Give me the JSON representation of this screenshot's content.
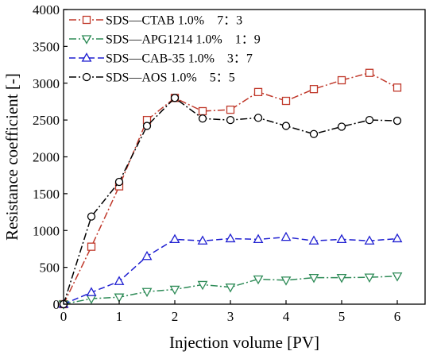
{
  "chart_data": {
    "type": "line",
    "xlabel": "Injection volume [PV]",
    "ylabel": "Resistance coefficient [-]",
    "xlim": [
      0,
      6.5
    ],
    "ylim": [
      0,
      4000
    ],
    "xticks": [
      0,
      1,
      2,
      3,
      4,
      5,
      6
    ],
    "yticks": [
      0,
      500,
      1000,
      1500,
      2000,
      2500,
      3000,
      3500,
      4000
    ],
    "legend_position": "top-left",
    "series": [
      {
        "name": "SDS—CTAB 1.0% 7：3",
        "color": "#c0392b",
        "marker": "square",
        "dash": "dash-dot",
        "x": [
          0,
          0.5,
          1,
          1.5,
          2,
          2.5,
          3,
          3.5,
          4,
          4.5,
          5,
          5.5,
          6
        ],
        "y": [
          0,
          780,
          1600,
          2500,
          2800,
          2620,
          2640,
          2880,
          2760,
          2920,
          3040,
          3140,
          2940
        ]
      },
      {
        "name": "SDS—APG1214 1.0% 1：9",
        "color": "#2e8b57",
        "marker": "triangle-down",
        "dash": "dash-dot",
        "x": [
          0,
          0.5,
          1,
          1.5,
          2,
          2.5,
          3,
          3.5,
          4,
          4.5,
          5,
          5.5,
          6
        ],
        "y": [
          0,
          75,
          95,
          170,
          200,
          265,
          230,
          340,
          325,
          360,
          360,
          365,
          380
        ]
      },
      {
        "name": "SDS—CAB-35 1.0% 3：7",
        "color": "#1f1fd1",
        "marker": "triangle-up",
        "dash": "dash",
        "x": [
          0,
          0.5,
          1,
          1.5,
          2,
          2.5,
          3,
          3.5,
          4,
          4.5,
          5,
          5.5,
          6
        ],
        "y": [
          0,
          160,
          310,
          650,
          880,
          860,
          890,
          880,
          910,
          860,
          880,
          860,
          890
        ]
      },
      {
        "name": "SDS—AOS 1.0% 5：5",
        "color": "#000000",
        "marker": "circle",
        "dash": "dash-dot",
        "x": [
          0,
          0.5,
          1,
          1.5,
          2,
          2.5,
          3,
          3.5,
          4,
          4.5,
          5,
          5.5,
          6
        ],
        "y": [
          0,
          1190,
          1660,
          2420,
          2800,
          2520,
          2500,
          2530,
          2420,
          2310,
          2410,
          2500,
          2490
        ]
      }
    ]
  }
}
